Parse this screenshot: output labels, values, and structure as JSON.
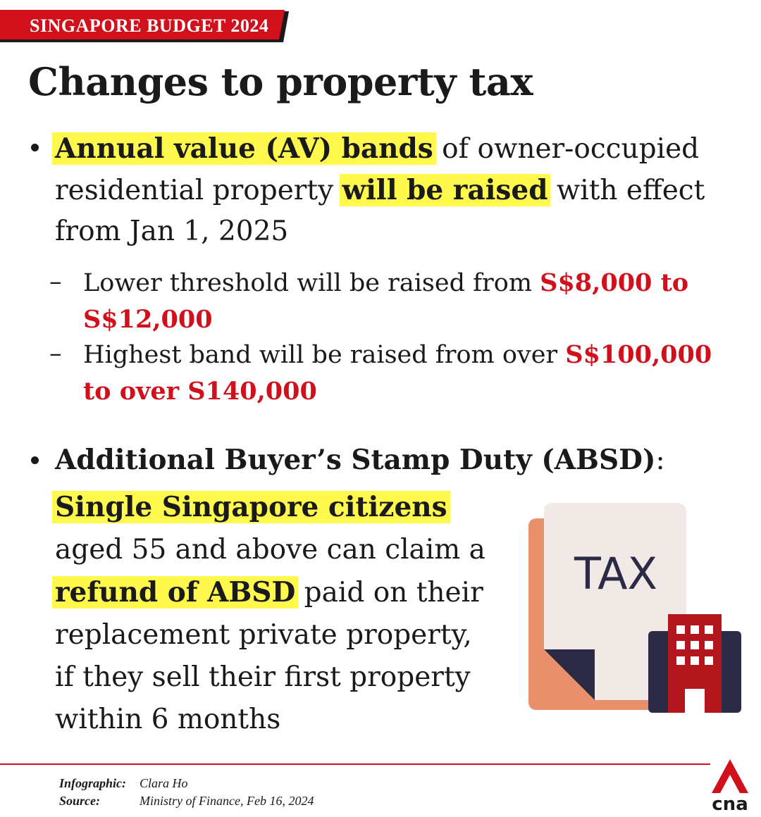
{
  "tag": "SINGAPORE BUDGET 2024",
  "title": "Changes to property tax",
  "bullet1": {
    "hl1": "Annual value (AV) bands",
    "t1": " of owner-occupied residential property ",
    "hl2": "will be raised",
    "t2": " with effect from Jan 1, 2025"
  },
  "sub1": {
    "text": "Lower threshold will be raised from ",
    "red": "S$8,000 to S$12,000"
  },
  "sub2": {
    "text": "Highest band will be raised from over ",
    "red": "S$100,000 to over S140,000"
  },
  "bullet2": {
    "heading": "Additional Buyer’s Stamp Duty (ABSD)",
    "colon": ":",
    "hl1": "Single Singapore citizens",
    "t1": "aged 55 and above can claim a",
    "hl2": "refund of ABSD",
    "t2": " paid on their",
    "t3": "replacement private property,",
    "t4": "if they sell their first property",
    "t5": "within 6 months"
  },
  "icon": {
    "name": "tax-document-building-icon",
    "label": "TAX"
  },
  "footer": {
    "infographic_label": "Infographic:",
    "infographic_value": "Clara Ho",
    "source_label": "Source:",
    "source_value": "Ministry of Finance, Feb 16, 2024"
  },
  "logo": "cna",
  "colors": {
    "accent_red": "#d1101b",
    "highlight": "#fff84d",
    "doc_orange": "#e8906b",
    "doc_paper": "#f0e9e6",
    "navy": "#2b2b45"
  }
}
